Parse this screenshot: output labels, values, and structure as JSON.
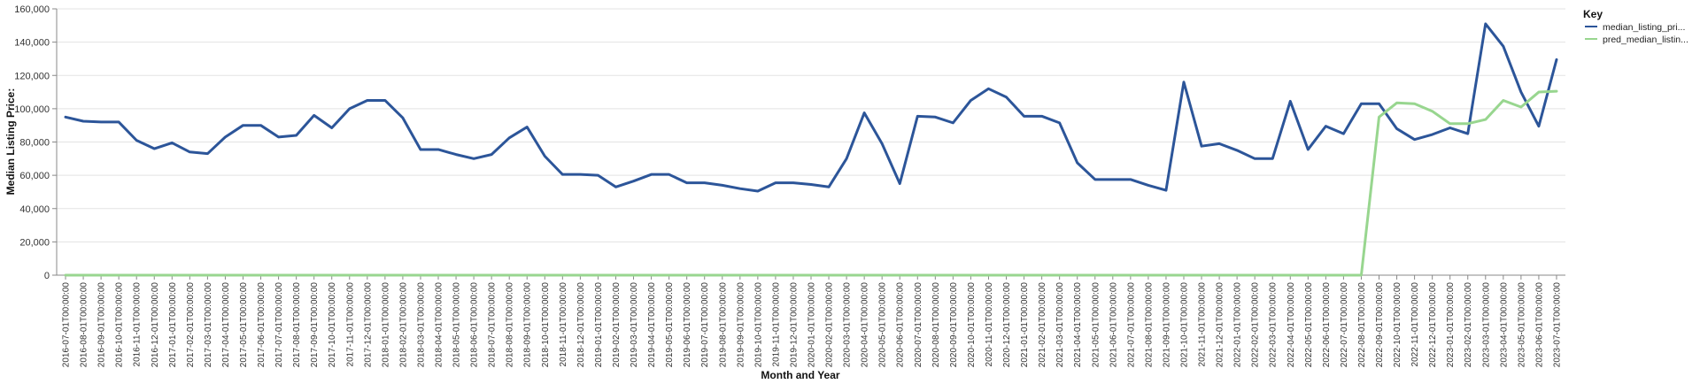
{
  "chart_data": {
    "type": "line",
    "xlabel": "Month and Year",
    "ylabel": "Median Listing Price:",
    "ylim": [
      0,
      160000
    ],
    "yticks": [
      0,
      20000,
      40000,
      60000,
      80000,
      100000,
      120000,
      140000,
      160000
    ],
    "ytick_labels": [
      "0",
      "20,000",
      "40,000",
      "60,000",
      "80,000",
      "100,000",
      "120,000",
      "140,000",
      "160,000"
    ],
    "grid": true,
    "legend": {
      "title": "Key",
      "placement": "right"
    },
    "x": [
      "2016-07-01T00:00:00",
      "2016-08-01T00:00:00",
      "2016-09-01T00:00:00",
      "2016-10-01T00:00:00",
      "2016-11-01T00:00:00",
      "2016-12-01T00:00:00",
      "2017-01-01T00:00:00",
      "2017-02-01T00:00:00",
      "2017-03-01T00:00:00",
      "2017-04-01T00:00:00",
      "2017-05-01T00:00:00",
      "2017-06-01T00:00:00",
      "2017-07-01T00:00:00",
      "2017-08-01T00:00:00",
      "2017-09-01T00:00:00",
      "2017-10-01T00:00:00",
      "2017-11-01T00:00:00",
      "2017-12-01T00:00:00",
      "2018-01-01T00:00:00",
      "2018-02-01T00:00:00",
      "2018-03-01T00:00:00",
      "2018-04-01T00:00:00",
      "2018-05-01T00:00:00",
      "2018-06-01T00:00:00",
      "2018-07-01T00:00:00",
      "2018-08-01T00:00:00",
      "2018-09-01T00:00:00",
      "2018-10-01T00:00:00",
      "2018-11-01T00:00:00",
      "2018-12-01T00:00:00",
      "2019-01-01T00:00:00",
      "2019-02-01T00:00:00",
      "2019-03-01T00:00:00",
      "2019-04-01T00:00:00",
      "2019-05-01T00:00:00",
      "2019-06-01T00:00:00",
      "2019-07-01T00:00:00",
      "2019-08-01T00:00:00",
      "2019-09-01T00:00:00",
      "2019-10-01T00:00:00",
      "2019-11-01T00:00:00",
      "2019-12-01T00:00:00",
      "2020-01-01T00:00:00",
      "2020-02-01T00:00:00",
      "2020-03-01T00:00:00",
      "2020-04-01T00:00:00",
      "2020-05-01T00:00:00",
      "2020-06-01T00:00:00",
      "2020-07-01T00:00:00",
      "2020-08-01T00:00:00",
      "2020-09-01T00:00:00",
      "2020-10-01T00:00:00",
      "2020-11-01T00:00:00",
      "2020-12-01T00:00:00",
      "2021-01-01T00:00:00",
      "2021-02-01T00:00:00",
      "2021-03-01T00:00:00",
      "2021-04-01T00:00:00",
      "2021-05-01T00:00:00",
      "2021-06-01T00:00:00",
      "2021-07-01T00:00:00",
      "2021-08-01T00:00:00",
      "2021-09-01T00:00:00",
      "2021-10-01T00:00:00",
      "2021-11-01T00:00:00",
      "2021-12-01T00:00:00",
      "2022-01-01T00:00:00",
      "2022-02-01T00:00:00",
      "2022-03-01T00:00:00",
      "2022-04-01T00:00:00",
      "2022-05-01T00:00:00",
      "2022-06-01T00:00:00",
      "2022-07-01T00:00:00",
      "2022-08-01T00:00:00",
      "2022-09-01T00:00:00",
      "2022-10-01T00:00:00",
      "2022-11-01T00:00:00",
      "2022-12-01T00:00:00",
      "2023-01-01T00:00:00",
      "2023-02-01T00:00:00",
      "2023-03-01T00:00:00",
      "2023-04-01T00:00:00",
      "2023-05-01T00:00:00",
      "2023-06-01T00:00:00",
      "2023-07-01T00:00:00"
    ],
    "series": [
      {
        "name": "median_listing_pri...",
        "color": "#2c5599",
        "values": [
          95000,
          92500,
          92000,
          92000,
          81000,
          76000,
          79500,
          74000,
          73000,
          83000,
          90000,
          90000,
          83000,
          84000,
          96000,
          88500,
          100000,
          105000,
          105000,
          94500,
          75500,
          75500,
          72500,
          70000,
          72500,
          82500,
          89000,
          71500,
          60500,
          60500,
          60000,
          53000,
          56500,
          60500,
          60500,
          55500,
          55500,
          54000,
          52000,
          50500,
          55500,
          55500,
          54500,
          53000,
          70000,
          97500,
          79000,
          55000,
          95500,
          95000,
          91500,
          105000,
          112000,
          107000,
          95500,
          95500,
          91500,
          67500,
          57500,
          57500,
          57500,
          54000,
          51000,
          116000,
          77500,
          79000,
          75000,
          70000,
          70000,
          104500,
          75500,
          89500,
          85000,
          103000,
          103000,
          88000,
          81500,
          84500,
          88500,
          85000,
          151000,
          137500,
          110000,
          89500,
          129500
        ]
      },
      {
        "name": "pred_median_listin...",
        "color": "#98d68f",
        "values": [
          0,
          0,
          0,
          0,
          0,
          0,
          0,
          0,
          0,
          0,
          0,
          0,
          0,
          0,
          0,
          0,
          0,
          0,
          0,
          0,
          0,
          0,
          0,
          0,
          0,
          0,
          0,
          0,
          0,
          0,
          0,
          0,
          0,
          0,
          0,
          0,
          0,
          0,
          0,
          0,
          0,
          0,
          0,
          0,
          0,
          0,
          0,
          0,
          0,
          0,
          0,
          0,
          0,
          0,
          0,
          0,
          0,
          0,
          0,
          0,
          0,
          0,
          0,
          0,
          0,
          0,
          0,
          0,
          0,
          0,
          0,
          0,
          0,
          0,
          95000,
          103500,
          103000,
          98500,
          91000,
          91000,
          93500,
          105000,
          101000,
          110000,
          110500
        ]
      }
    ]
  }
}
